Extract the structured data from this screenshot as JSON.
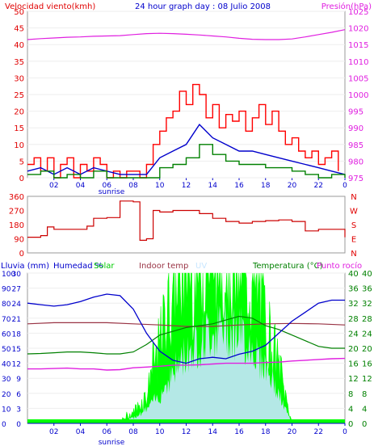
{
  "header": {
    "left_label": "Velocidad viento(kmh)",
    "title": "24 hour graph day : 08 Julio 2008",
    "right_label": "Presión(hPa)"
  },
  "legend": {
    "lluvia": "Lluvia (mm)",
    "humedad": "Humedad %",
    "solar": "Solar",
    "indoor": "Indoor temp",
    "uv": "UV",
    "temperatura": "Temperatura (°C)",
    "punto_rocio": "Punto rocío"
  },
  "sunrise_label": "sunrise",
  "x_ticks": [
    "02",
    "04",
    "06",
    "08",
    "10",
    "12",
    "14",
    "16",
    "18",
    "20",
    "22",
    "0"
  ],
  "colors": {
    "wind_axis": "#e00000",
    "pressure": "#e020e0",
    "wind_gust": "#ff0000",
    "wind_avg": "#0000cc",
    "wind_green": "#008000",
    "direction": "#cc0000",
    "humidity": "#0000cc",
    "solar": "#00ff00",
    "uv": "#c8e6ff",
    "indoor": "#993344",
    "temperature": "#008000",
    "dewpoint": "#e020e0",
    "rain": "#0000cc",
    "ticks": "#0000cc"
  },
  "chart_data": [
    {
      "type": "line",
      "title": "24 hour graph day : 08 Julio 2008",
      "xlabel": "",
      "ylabel_left": "Velocidad viento(kmh)",
      "ylabel_right": "Presión(hPa)",
      "x_range": [
        0,
        24
      ],
      "ylim_left": [
        0,
        50
      ],
      "ylim_right": [
        975,
        1025
      ],
      "left_ticks": [
        0,
        5,
        10,
        15,
        20,
        25,
        30,
        35,
        40,
        45,
        50
      ],
      "right_ticks": [
        975,
        980,
        985,
        990,
        995,
        1000,
        1005,
        1010,
        1015,
        1020,
        1025
      ],
      "series": [
        {
          "name": "Presión",
          "axis": "right",
          "x": [
            0,
            1,
            2,
            3,
            4,
            5,
            6,
            7,
            8,
            9,
            10,
            11,
            12,
            13,
            14,
            15,
            16,
            17,
            18,
            19,
            20,
            21,
            22,
            23,
            24
          ],
          "values": [
            1016.5,
            1016.8,
            1017,
            1017.2,
            1017.3,
            1017.5,
            1017.6,
            1017.7,
            1018,
            1018.3,
            1018.4,
            1018.3,
            1018.1,
            1017.9,
            1017.6,
            1017.3,
            1016.9,
            1016.6,
            1016.5,
            1016.5,
            1016.7,
            1017.3,
            1018,
            1018.7,
            1019.5
          ]
        },
        {
          "name": "Velocidad viento",
          "x": [
            0,
            0.5,
            1,
            1.5,
            2,
            2.5,
            3,
            3.5,
            4,
            4.5,
            5,
            5.5,
            6,
            6.5,
            7,
            7.5,
            8,
            8.5,
            9,
            9.5,
            10,
            10.5,
            11,
            11.5,
            12,
            12.5,
            13,
            13.5,
            14,
            14.5,
            15,
            15.5,
            16,
            16.5,
            17,
            17.5,
            18,
            18.5,
            19,
            19.5,
            20,
            20.5,
            21,
            21.5,
            22,
            22.5,
            23,
            23.5
          ],
          "values": [
            4,
            6,
            2,
            6,
            0,
            4,
            6,
            0,
            4,
            2,
            6,
            4,
            0,
            2,
            0,
            2,
            2,
            0,
            4,
            10,
            14,
            18,
            20,
            26,
            22,
            28,
            25,
            18,
            22,
            15,
            19,
            17,
            20,
            14,
            18,
            22,
            16,
            20,
            14,
            10,
            12,
            8,
            6,
            8,
            4,
            6,
            8,
            2
          ]
        },
        {
          "name": "Viento medio",
          "x": [
            0,
            1,
            2,
            3,
            4,
            5,
            6,
            7,
            8,
            9,
            10,
            11,
            12,
            13,
            14,
            15,
            16,
            17,
            18,
            19,
            20,
            21,
            22,
            23,
            24
          ],
          "values": [
            2,
            3,
            1,
            3,
            1,
            3,
            2,
            1,
            1,
            1,
            6,
            8,
            10,
            16,
            12,
            10,
            8,
            8,
            7,
            6,
            5,
            4,
            3,
            2,
            1
          ]
        },
        {
          "name": "Ráfaga",
          "x": [
            0,
            1,
            2,
            3,
            4,
            5,
            6,
            7,
            8,
            9,
            10,
            11,
            12,
            13,
            14,
            15,
            16,
            17,
            18,
            19,
            20,
            21,
            22,
            23,
            24
          ],
          "values": [
            1,
            2,
            0,
            1,
            0,
            2,
            0,
            0,
            0,
            0,
            3,
            4,
            6,
            10,
            7,
            5,
            4,
            4,
            3,
            3,
            2,
            1,
            0,
            1,
            0
          ]
        }
      ]
    },
    {
      "type": "line",
      "title": "",
      "ylim": [
        0,
        360
      ],
      "left_ticks": [
        0,
        90,
        180,
        270,
        360
      ],
      "right_labels": [
        "N",
        "W",
        "S",
        "E",
        "N"
      ],
      "series": [
        {
          "name": "Dirección",
          "x": [
            0,
            1,
            1.5,
            2,
            3,
            4,
            4.5,
            5,
            6,
            7,
            7.5,
            8,
            8.5,
            9,
            9.5,
            10,
            11,
            12,
            13,
            14,
            15,
            16,
            17,
            18,
            19,
            20,
            21,
            22,
            23,
            24
          ],
          "values": [
            100,
            110,
            165,
            150,
            150,
            150,
            170,
            220,
            225,
            330,
            330,
            325,
            80,
            90,
            270,
            260,
            270,
            270,
            250,
            220,
            200,
            190,
            200,
            205,
            210,
            200,
            140,
            150,
            150,
            100
          ]
        }
      ]
    },
    {
      "type": "line",
      "title": "",
      "ylim_lluvia": [
        0,
        30
      ],
      "ylim_humedad": [
        0,
        100
      ],
      "ylim_temp": [
        0,
        40
      ],
      "lluvia_ticks": [
        0,
        3,
        6,
        9,
        12,
        15,
        18,
        21,
        24,
        27,
        30
      ],
      "humedad_ticks": [
        0,
        5,
        10,
        15,
        20,
        25,
        30,
        35,
        40,
        45,
        50,
        55,
        60,
        65,
        70,
        75,
        80,
        85,
        90,
        95,
        100
      ],
      "temp_ticks": [
        0,
        4,
        8,
        12,
        16,
        20,
        24,
        28,
        32,
        36,
        40
      ],
      "series": [
        {
          "name": "Humedad",
          "x": [
            0,
            1,
            2,
            3,
            4,
            5,
            6,
            7,
            8,
            9,
            10,
            11,
            12,
            13,
            14,
            15,
            16,
            17,
            18,
            19,
            20,
            21,
            22,
            23,
            24
          ],
          "values": [
            80,
            79,
            78,
            79,
            81,
            84,
            86,
            85,
            76,
            60,
            48,
            42,
            40,
            43,
            44,
            43,
            46,
            48,
            52,
            60,
            68,
            74,
            80,
            82,
            82
          ]
        },
        {
          "name": "Indoor temp",
          "x": [
            0,
            2,
            4,
            6,
            8,
            10,
            12,
            14,
            16,
            18,
            20,
            22,
            24
          ],
          "values": [
            26.5,
            26.8,
            26.8,
            26.8,
            26.5,
            26.2,
            25.8,
            25.8,
            26.2,
            26.5,
            26.6,
            26.5,
            26.2
          ]
        },
        {
          "name": "Temperatura",
          "x": [
            0,
            1,
            2,
            3,
            4,
            5,
            6,
            7,
            8,
            9,
            10,
            11,
            12,
            13,
            14,
            15,
            16,
            17,
            18,
            19,
            20,
            21,
            22,
            23,
            24
          ],
          "values": [
            18.5,
            18.6,
            18.8,
            19,
            19,
            18.8,
            18.5,
            18.5,
            19,
            21,
            23.5,
            24.5,
            25.5,
            26,
            26.5,
            27.5,
            28.5,
            28,
            26,
            25,
            23.5,
            22,
            20.5,
            20,
            20
          ]
        },
        {
          "name": "Punto rocío",
          "x": [
            0,
            1,
            2,
            3,
            4,
            5,
            6,
            7,
            8,
            9,
            10,
            11,
            12,
            13,
            14,
            15,
            16,
            17,
            18,
            19,
            20,
            21,
            22,
            23,
            24
          ],
          "values": [
            14.5,
            14.5,
            14.6,
            14.7,
            14.5,
            14.5,
            14.2,
            14.3,
            14.8,
            15,
            15.2,
            15.5,
            15.5,
            15.6,
            15.8,
            16,
            16,
            16,
            16.2,
            16.3,
            16.6,
            16.8,
            17,
            17.2,
            17.3
          ]
        },
        {
          "name": "Solar",
          "x": [
            6,
            7,
            8,
            9,
            10,
            11,
            12,
            13,
            14,
            15,
            16,
            17,
            18,
            19,
            20
          ],
          "values": [
            0,
            1,
            4,
            11,
            30,
            55,
            60,
            66,
            70,
            68,
            64,
            55,
            40,
            22,
            0
          ]
        },
        {
          "name": "UV",
          "x": [
            7,
            8,
            9,
            10,
            11,
            12,
            13,
            14,
            15,
            16,
            17,
            18,
            19,
            20
          ],
          "values": [
            0,
            2,
            5,
            10,
            18,
            25,
            29,
            33,
            34,
            32,
            27,
            20,
            10,
            0
          ]
        },
        {
          "name": "Lluvia",
          "x": [
            0,
            24
          ],
          "values": [
            0,
            0
          ]
        }
      ]
    }
  ]
}
